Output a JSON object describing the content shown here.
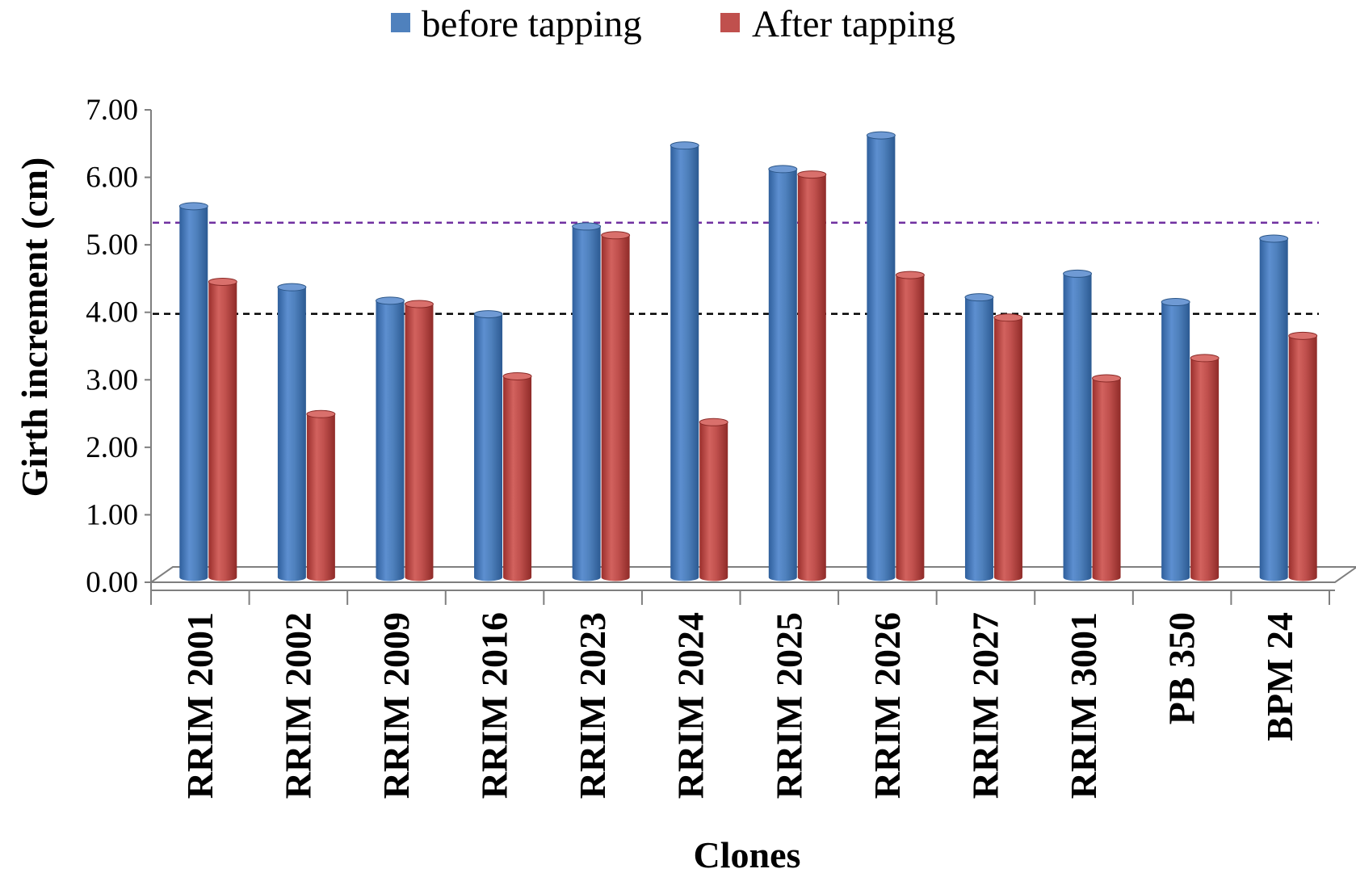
{
  "chart_data": {
    "type": "bar",
    "title": "",
    "xlabel": "Clones",
    "ylabel": "Girth increment (cm)",
    "ylim": [
      0,
      7
    ],
    "yticks": [
      "0.00",
      "1.00",
      "2.00",
      "3.00",
      "4.00",
      "5.00",
      "6.00",
      "7.00"
    ],
    "legend_position": "top-center",
    "grid": false,
    "categories": [
      "RRIM 2001",
      "RRIM 2002",
      "RRIM 2009",
      "RRIM 2016",
      "RRIM 2023",
      "RRIM 2024",
      "RRIM 2025",
      "RRIM 2026",
      "RRIM 2027",
      "RRIM 3001",
      "PB 350",
      "BPM 24"
    ],
    "series": [
      {
        "name": "before tapping",
        "color": "#4F81BD",
        "values": [
          5.5,
          4.3,
          4.1,
          3.9,
          5.2,
          6.4,
          6.05,
          6.55,
          4.15,
          4.5,
          4.08,
          5.02
        ]
      },
      {
        "name": "After tapping",
        "color": "#C0504D",
        "values": [
          4.38,
          2.42,
          4.05,
          2.98,
          5.07,
          2.3,
          5.97,
          4.48,
          3.85,
          2.95,
          3.25,
          3.58
        ]
      }
    ],
    "reference_lines": [
      {
        "value": 5.22,
        "color": "#7030A0",
        "style": "dashed"
      },
      {
        "value": 3.87,
        "color": "#000000",
        "style": "dashed"
      }
    ]
  }
}
